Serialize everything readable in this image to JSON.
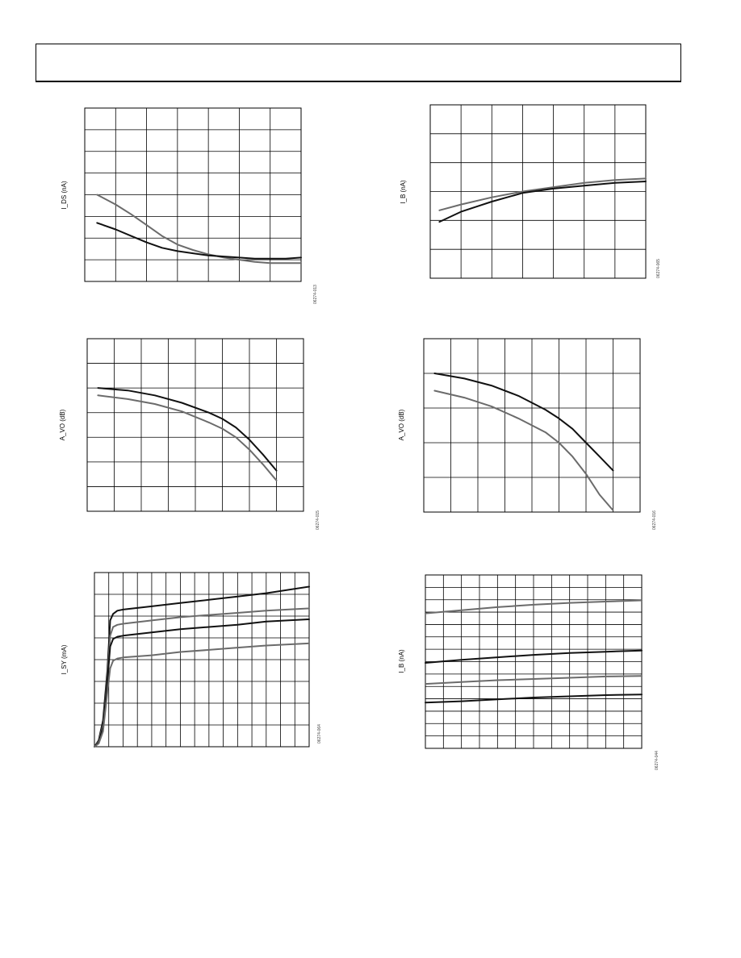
{
  "page": {
    "header_title": ""
  },
  "colors": {
    "black_series": "#111111",
    "gray_series": "#6b6b6b",
    "grid": "#000000"
  },
  "chart_data": [
    {
      "type": "line",
      "title": "",
      "ylabel": "I_DS (nA)",
      "xlabel": "",
      "figure_code": "06274-013",
      "grid": true,
      "grid_cols": 7,
      "grid_rows": 8,
      "xlim": [
        0,
        7
      ],
      "ylim": [
        0,
        8
      ],
      "series": [
        {
          "color": "gray",
          "x": [
            0.4,
            1,
            1.5,
            2,
            2.5,
            3,
            3.5,
            4,
            4.5,
            5,
            5.5,
            6,
            6.5,
            7
          ],
          "y": [
            4.0,
            3.55,
            3.1,
            2.6,
            2.1,
            1.7,
            1.45,
            1.25,
            1.1,
            1.0,
            0.9,
            0.85,
            0.85,
            0.85
          ]
        },
        {
          "color": "black",
          "x": [
            0.4,
            1,
            1.5,
            2,
            2.5,
            3,
            3.5,
            4,
            4.5,
            5,
            5.5,
            6,
            6.5,
            7
          ],
          "y": [
            2.7,
            2.4,
            2.1,
            1.8,
            1.55,
            1.4,
            1.3,
            1.2,
            1.15,
            1.1,
            1.05,
            1.05,
            1.05,
            1.1
          ]
        }
      ]
    },
    {
      "type": "line",
      "title": "",
      "ylabel": "I_B (nA)",
      "xlabel": "",
      "figure_code": "06274-065",
      "grid": true,
      "grid_cols": 7,
      "grid_rows": 6,
      "xlim": [
        0,
        7
      ],
      "ylim": [
        0,
        6
      ],
      "series": [
        {
          "color": "gray",
          "x": [
            0.3,
            1,
            2,
            3,
            4,
            5,
            6,
            7
          ],
          "y": [
            2.35,
            2.55,
            2.8,
            3.0,
            3.15,
            3.3,
            3.4,
            3.45
          ]
        },
        {
          "color": "black",
          "x": [
            0.3,
            1,
            2,
            3,
            4,
            5,
            6,
            7
          ],
          "y": [
            1.95,
            2.3,
            2.65,
            2.95,
            3.1,
            3.2,
            3.3,
            3.35
          ]
        }
      ]
    },
    {
      "type": "line",
      "title": "",
      "ylabel": "A_VO (dB)",
      "xlabel": "",
      "figure_code": "06274-015",
      "grid": true,
      "grid_cols": 8,
      "grid_rows": 7,
      "xlim": [
        0,
        8
      ],
      "ylim": [
        0,
        7
      ],
      "series": [
        {
          "color": "black",
          "x": [
            0.4,
            1.5,
            2.5,
            3.5,
            4.5,
            5,
            5.5,
            6,
            6.5,
            7
          ],
          "y": [
            5.0,
            4.9,
            4.7,
            4.4,
            4.0,
            3.75,
            3.4,
            2.9,
            2.3,
            1.65
          ]
        },
        {
          "color": "gray",
          "x": [
            0.4,
            1.5,
            2.5,
            3.5,
            4.5,
            5,
            5.5,
            6,
            6.5,
            7
          ],
          "y": [
            4.7,
            4.55,
            4.35,
            4.05,
            3.6,
            3.35,
            3.0,
            2.5,
            1.9,
            1.25
          ]
        }
      ]
    },
    {
      "type": "line",
      "title": "",
      "ylabel": "A_VO (dB)",
      "xlabel": "",
      "figure_code": "06274-016",
      "grid": true,
      "grid_cols": 8,
      "grid_rows": 5,
      "xlim": [
        0,
        8
      ],
      "ylim": [
        0,
        5
      ],
      "series": [
        {
          "color": "black",
          "x": [
            0.4,
            1.5,
            2.5,
            3.5,
            4.5,
            5,
            5.5,
            6,
            6.5,
            7
          ],
          "y": [
            4.0,
            3.85,
            3.65,
            3.35,
            2.95,
            2.7,
            2.4,
            2.0,
            1.6,
            1.2
          ]
        },
        {
          "color": "gray",
          "x": [
            0.4,
            1.5,
            2.5,
            3.5,
            4.5,
            5,
            5.5,
            6,
            6.5,
            7
          ],
          "y": [
            3.5,
            3.3,
            3.05,
            2.7,
            2.3,
            2.0,
            1.6,
            1.1,
            0.5,
            0.05
          ]
        }
      ]
    },
    {
      "type": "line",
      "title": "",
      "ylabel": "I_SY (mA)",
      "xlabel": "",
      "figure_code": "06274-064",
      "grid": true,
      "grid_cols": 15,
      "grid_rows": 8,
      "xlim": [
        0,
        15
      ],
      "ylim": [
        0,
        8
      ],
      "series": [
        {
          "color": "black",
          "x": [
            0,
            0.3,
            0.6,
            0.9,
            1.1,
            1.3,
            1.6,
            2,
            4,
            6,
            8,
            10,
            12,
            15
          ],
          "y": [
            0,
            0.3,
            1.2,
            3.5,
            5.8,
            6.1,
            6.25,
            6.3,
            6.45,
            6.6,
            6.75,
            6.9,
            7.05,
            7.35
          ]
        },
        {
          "color": "gray",
          "x": [
            0,
            0.3,
            0.6,
            0.9,
            1.1,
            1.3,
            1.6,
            2,
            4,
            6,
            8,
            10,
            12,
            15
          ],
          "y": [
            0,
            0.25,
            1.0,
            3.2,
            5.1,
            5.5,
            5.6,
            5.65,
            5.8,
            5.95,
            6.05,
            6.15,
            6.25,
            6.35
          ]
        },
        {
          "color": "black",
          "x": [
            0,
            0.3,
            0.6,
            0.9,
            1.1,
            1.3,
            1.6,
            2,
            4,
            6,
            8,
            10,
            12,
            15
          ],
          "y": [
            0,
            0.2,
            0.9,
            3.0,
            4.6,
            4.95,
            5.05,
            5.1,
            5.25,
            5.4,
            5.5,
            5.6,
            5.75,
            5.85
          ]
        },
        {
          "color": "gray",
          "x": [
            0,
            0.3,
            0.6,
            0.9,
            1.1,
            1.3,
            1.6,
            2,
            4,
            6,
            8,
            10,
            12,
            15
          ],
          "y": [
            0,
            0.15,
            0.7,
            2.5,
            3.6,
            3.95,
            4.05,
            4.1,
            4.2,
            4.35,
            4.45,
            4.55,
            4.65,
            4.75
          ]
        }
      ]
    },
    {
      "type": "line",
      "title": "",
      "ylabel": "I_B (nA)",
      "xlabel": "",
      "figure_code": "06274-044",
      "grid": true,
      "grid_cols": 12,
      "grid_rows": 14,
      "xlim": [
        0,
        12
      ],
      "ylim": [
        0,
        14
      ],
      "series": [
        {
          "color": "gray",
          "x": [
            0,
            2,
            4,
            6,
            8,
            10,
            12
          ],
          "y": [
            10.9,
            11.15,
            11.4,
            11.6,
            11.75,
            11.85,
            11.95
          ]
        },
        {
          "color": "black",
          "x": [
            0,
            2,
            4,
            6,
            8,
            10,
            12
          ],
          "y": [
            6.9,
            7.15,
            7.35,
            7.55,
            7.7,
            7.8,
            7.9
          ]
        },
        {
          "color": "gray",
          "x": [
            0,
            2,
            4,
            6,
            8,
            10,
            12
          ],
          "y": [
            5.2,
            5.35,
            5.5,
            5.6,
            5.7,
            5.8,
            5.85
          ]
        },
        {
          "color": "black",
          "x": [
            0,
            2,
            4,
            6,
            8,
            10,
            12
          ],
          "y": [
            3.7,
            3.8,
            3.95,
            4.1,
            4.2,
            4.3,
            4.35
          ]
        }
      ]
    }
  ]
}
